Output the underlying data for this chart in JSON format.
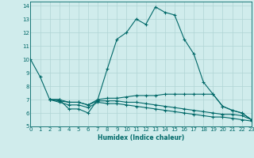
{
  "xlabel": "Humidex (Indice chaleur)",
  "bg_color": "#d0ecec",
  "grid_color": "#b0d4d4",
  "line_color": "#006868",
  "xlim": [
    0,
    23
  ],
  "ylim": [
    5,
    14.3
  ],
  "xticks": [
    0,
    1,
    2,
    3,
    4,
    5,
    6,
    7,
    8,
    9,
    10,
    11,
    12,
    13,
    14,
    15,
    16,
    17,
    18,
    19,
    20,
    21,
    22,
    23
  ],
  "yticks": [
    5,
    6,
    7,
    8,
    9,
    10,
    11,
    12,
    13,
    14
  ],
  "line1_x": [
    0,
    1,
    2,
    3,
    4,
    5,
    6,
    7,
    8,
    9,
    10,
    11,
    12,
    13,
    14,
    15,
    16,
    17,
    18,
    19,
    20,
    21,
    22,
    23
  ],
  "line1_y": [
    10.0,
    8.7,
    7.0,
    7.0,
    6.3,
    6.3,
    6.0,
    7.0,
    9.3,
    11.5,
    12.0,
    13.0,
    12.6,
    13.9,
    13.5,
    13.3,
    11.5,
    10.4,
    8.3,
    7.4,
    6.5,
    6.2,
    6.0,
    5.5
  ],
  "line2_x": [
    2,
    3,
    4,
    5,
    6,
    7,
    8,
    9,
    10,
    11,
    12,
    13,
    14,
    15,
    16,
    17,
    18,
    19,
    20,
    21,
    22,
    23
  ],
  "line2_y": [
    7.0,
    7.0,
    6.8,
    6.8,
    6.6,
    7.0,
    7.1,
    7.1,
    7.2,
    7.3,
    7.3,
    7.3,
    7.4,
    7.4,
    7.4,
    7.4,
    7.4,
    7.4,
    6.5,
    6.2,
    6.0,
    5.5
  ],
  "line3_x": [
    2,
    3,
    4,
    5,
    6,
    7,
    8,
    9,
    10,
    11,
    12,
    13,
    14,
    15,
    16,
    17,
    18,
    19,
    20,
    21,
    22,
    23
  ],
  "line3_y": [
    7.0,
    6.9,
    6.8,
    6.8,
    6.6,
    6.9,
    6.9,
    6.9,
    6.8,
    6.8,
    6.7,
    6.6,
    6.5,
    6.4,
    6.3,
    6.2,
    6.1,
    6.0,
    5.9,
    5.9,
    5.8,
    5.5
  ],
  "line4_x": [
    2,
    3,
    4,
    5,
    6,
    7,
    8,
    9,
    10,
    11,
    12,
    13,
    14,
    15,
    16,
    17,
    18,
    19,
    20,
    21,
    22,
    23
  ],
  "line4_y": [
    7.0,
    6.8,
    6.6,
    6.6,
    6.4,
    6.8,
    6.7,
    6.7,
    6.6,
    6.5,
    6.4,
    6.3,
    6.2,
    6.1,
    6.0,
    5.9,
    5.8,
    5.7,
    5.7,
    5.6,
    5.5,
    5.4
  ]
}
